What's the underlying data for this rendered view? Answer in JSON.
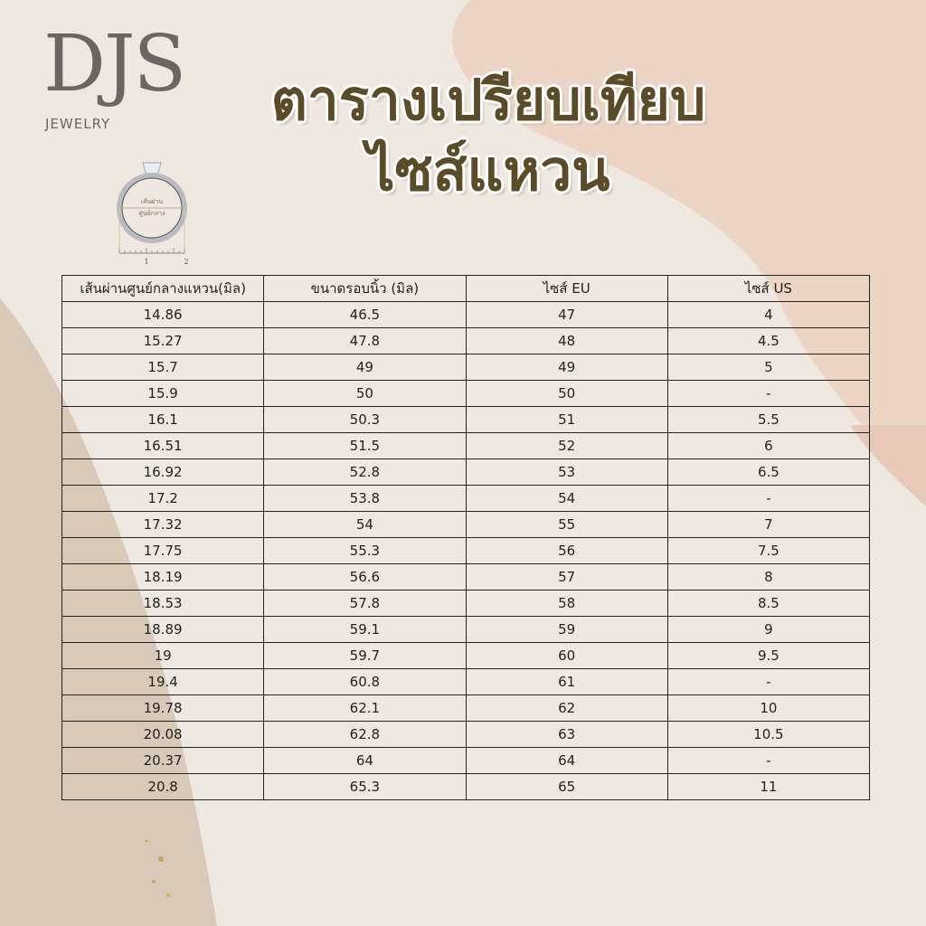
{
  "brand": {
    "name": "DJS",
    "sub": "JEWELRY"
  },
  "title": {
    "line1": "ตารางเปรียบเทียบ",
    "line2": "ไซส์แหวน"
  },
  "ring_diagram": {
    "label_line1": "เส้นผ่าน",
    "label_line2": "ศูนย์กลาง",
    "ruler_1": "1",
    "ruler_2": "2"
  },
  "colors": {
    "title": "#5b4b27",
    "background": "#eee8e0",
    "peach": "#edd5c6",
    "tan": "#d9c9b8"
  },
  "table": {
    "headers": [
      "เส้นผ่านศูนย์กลางแหวน(มิล)",
      "ขนาดรอบนิ้ว (มิล)",
      "ไซส์ EU",
      "ไซส์ US"
    ],
    "rows": [
      [
        "14.86",
        "46.5",
        "47",
        "4"
      ],
      [
        "15.27",
        "47.8",
        "48",
        "4.5"
      ],
      [
        "15.7",
        "49",
        "49",
        "5"
      ],
      [
        "15.9",
        "50",
        "50",
        "-"
      ],
      [
        "16.1",
        "50.3",
        "51",
        "5.5"
      ],
      [
        "16.51",
        "51.5",
        "52",
        "6"
      ],
      [
        "16.92",
        "52.8",
        "53",
        "6.5"
      ],
      [
        "17.2",
        "53.8",
        "54",
        "-"
      ],
      [
        "17.32",
        "54",
        "55",
        "7"
      ],
      [
        "17.75",
        "55.3",
        "56",
        "7.5"
      ],
      [
        "18.19",
        "56.6",
        "57",
        "8"
      ],
      [
        "18.53",
        "57.8",
        "58",
        "8.5"
      ],
      [
        "18.89",
        "59.1",
        "59",
        "9"
      ],
      [
        "19",
        "59.7",
        "60",
        "9.5"
      ],
      [
        "19.4",
        "60.8",
        "61",
        "-"
      ],
      [
        "19.78",
        "62.1",
        "62",
        "10"
      ],
      [
        "20.08",
        "62.8",
        "63",
        "10.5"
      ],
      [
        "20.37",
        "64",
        "64",
        "-"
      ],
      [
        "20.8",
        "65.3",
        "65",
        "11"
      ]
    ]
  }
}
